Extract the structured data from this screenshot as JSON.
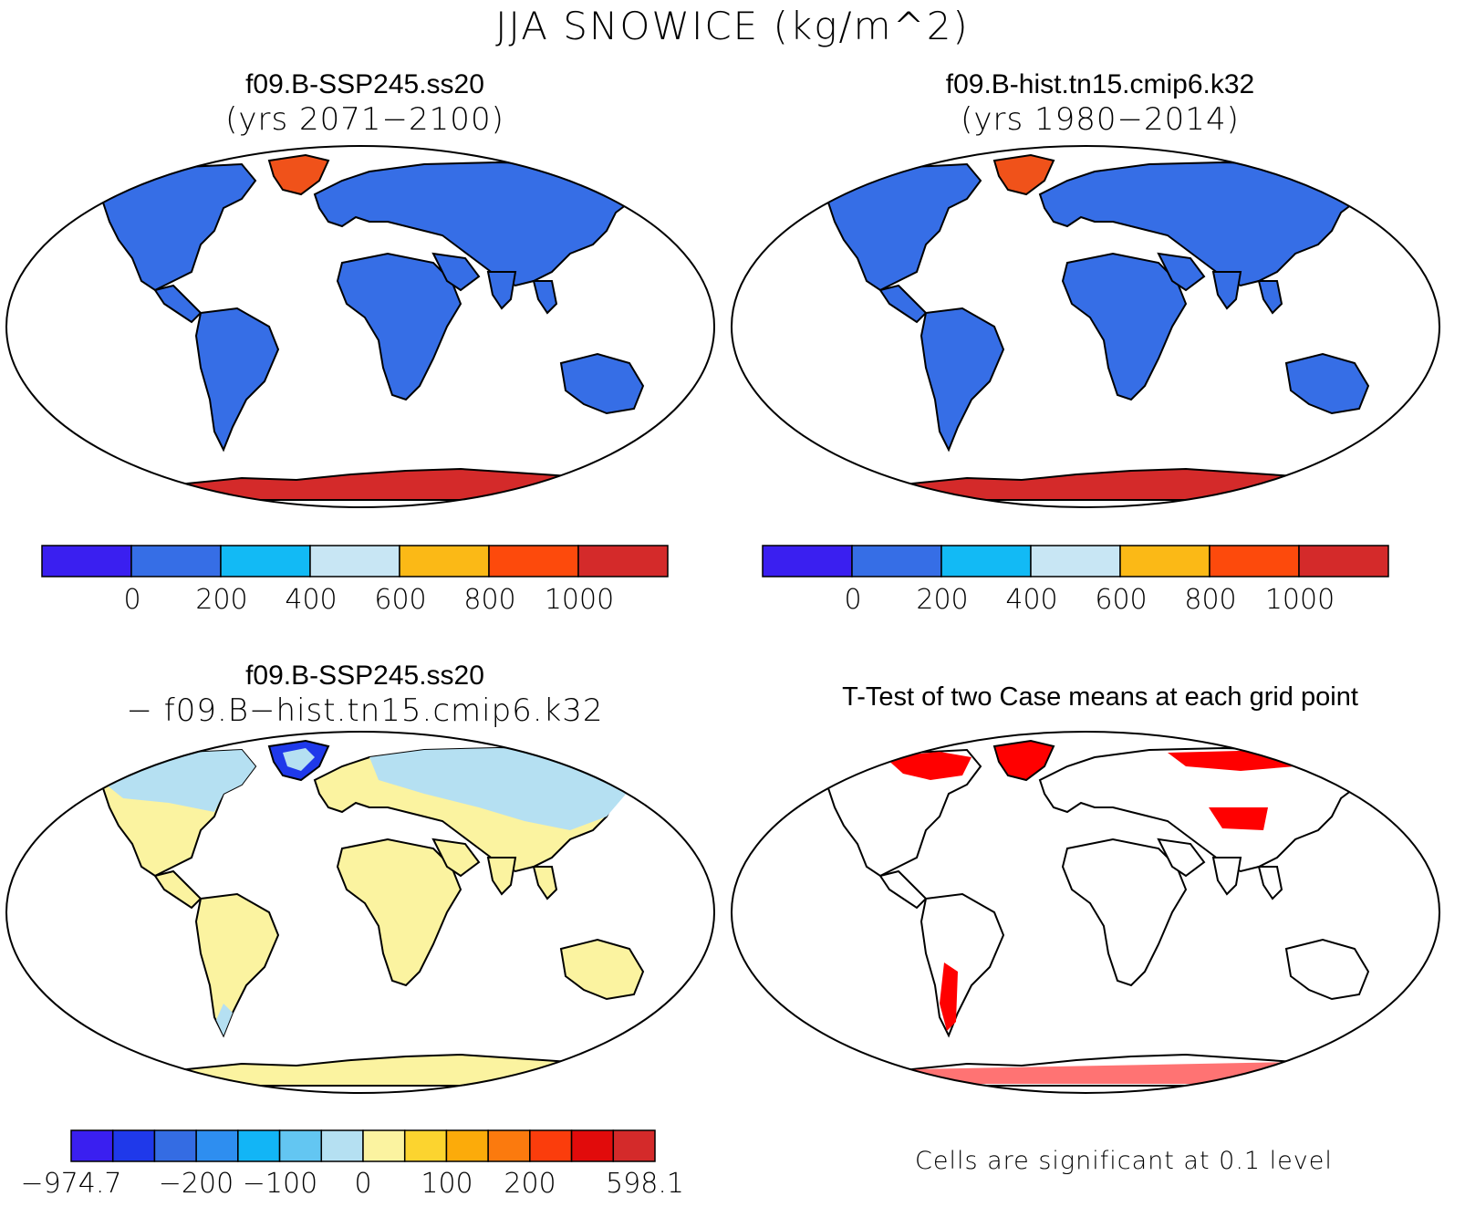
{
  "title": "JJA SNOWICE (kg/m^2)",
  "panels": [
    {
      "title": "f09.B-SSP245.ss20",
      "subtitle": "(yrs 2071−2100)"
    },
    {
      "title": "f09.B-hist.tn15.cmip6.k32",
      "subtitle": "(yrs 1980−2014)"
    },
    {
      "title": "f09.B-SSP245.ss20",
      "subtitle": "− f09.B−hist.tn15.cmip6.k32"
    },
    {
      "title": "T-Test of two Case means at each grid point",
      "subtitle": ""
    }
  ],
  "colorbar_main": {
    "colors": [
      "#3a1ff0",
      "#366ee6",
      "#12baf5",
      "#c8e6f4",
      "#fbb916",
      "#fd4a0c",
      "#d42a2a"
    ],
    "labels": [
      "0",
      "200",
      "400",
      "600",
      "800",
      "1000"
    ]
  },
  "colorbar_diff": {
    "colors": [
      "#3a1ff0",
      "#1f39ea",
      "#346ce3",
      "#2e8ef0",
      "#12b5f6",
      "#63c6f2",
      "#b5e0f2",
      "#fbf3a0",
      "#fcd42f",
      "#fcab0a",
      "#fb7a0e",
      "#fb3d0c",
      "#e10b0b",
      "#d42a2a"
    ],
    "labels": [
      "−974.7",
      "−200",
      "−100",
      "0",
      "100",
      "200",
      "598.1"
    ]
  },
  "significance_note": "Cells are significant at 0.1 level",
  "chart_data": [
    {
      "type": "heatmap",
      "title": "f09.B-SSP245.ss20",
      "subtitle": "(yrs 2071−2100)",
      "levels": [
        0,
        200,
        400,
        600,
        800,
        1000
      ],
      "regions": {
        "land": "0–200",
        "greenland": "800–1000",
        "antarctica": ">1000"
      }
    },
    {
      "type": "heatmap",
      "title": "f09.B-hist.tn15.cmip6.k32",
      "subtitle": "(yrs 1980−2014)",
      "levels": [
        0,
        200,
        400,
        600,
        800,
        1000
      ],
      "regions": {
        "land": "0–200",
        "greenland": "800–1000",
        "antarctica": ">1000"
      }
    },
    {
      "type": "heatmap",
      "title": "f09.B-SSP245.ss20",
      "subtitle": "− f09.B−hist.tn15.cmip6.k32",
      "levels": [
        -974.7,
        -200,
        -100,
        0,
        100,
        200,
        598.1
      ]
    },
    {
      "type": "heatmap",
      "title": "T-Test of two Case means at each grid point",
      "note": "Cells are significant at 0.1 level"
    }
  ],
  "colors": {
    "land_main": "#366ee6",
    "greenland_main": "#f0521a",
    "antarctica_main": "#d42a2a",
    "land_diff": "#fbf3a0",
    "north_diff": "#b5e0f2",
    "significant": "#ff0000"
  }
}
